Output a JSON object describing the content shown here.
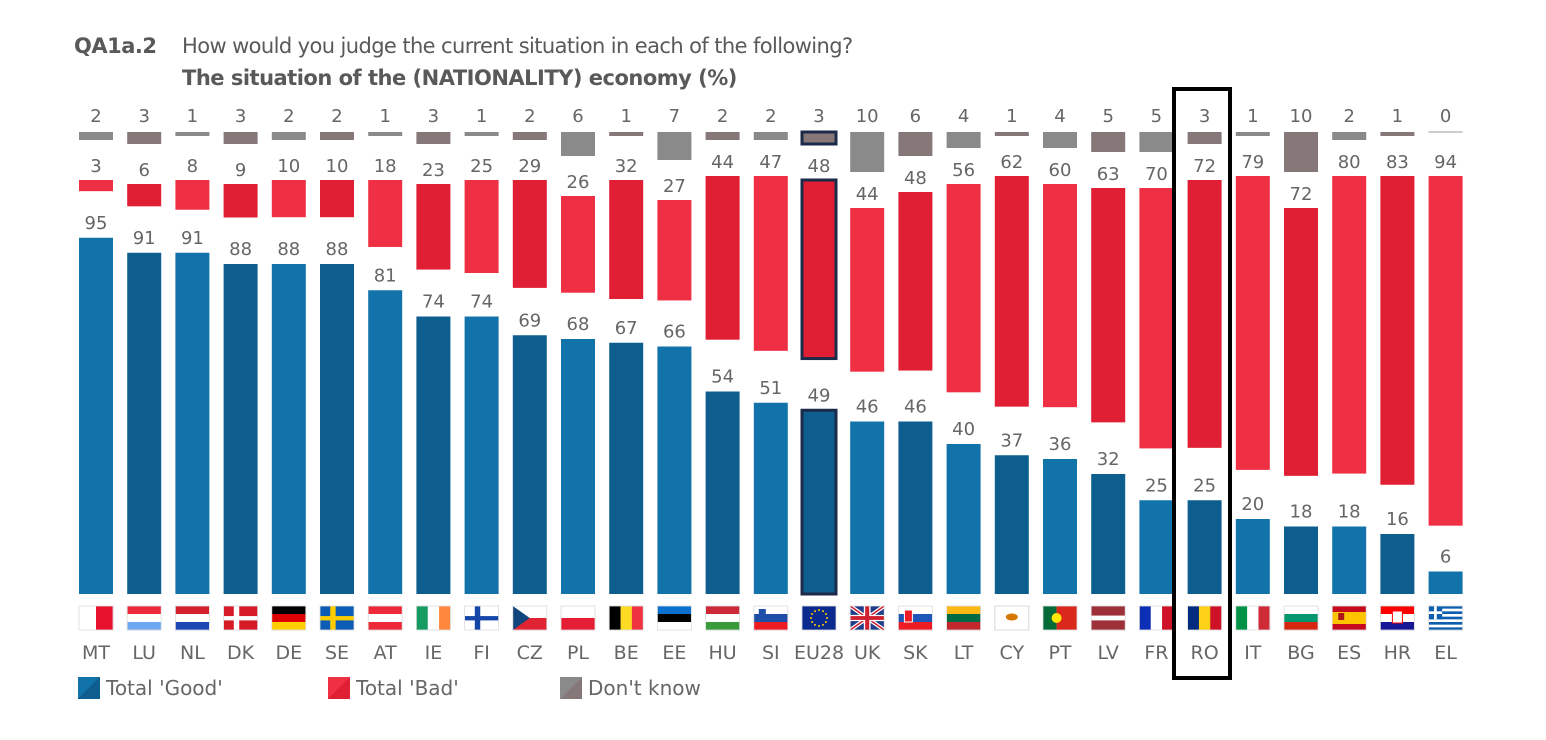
{
  "header": {
    "question_code": "QA1a.2",
    "question": "How would you judge the current situation in each of the following?",
    "subtitle": "The situation of the (NATIONALITY) economy (%)"
  },
  "legend": {
    "good": "Total 'Good'",
    "bad": "Total 'Bad'",
    "dk": "Don't know"
  },
  "colors": {
    "good_light": "#1273ab",
    "good_dark": "#0d5e8e",
    "bad_light": "#ef3044",
    "bad_dark": "#e01e34",
    "dk_light": "#8a8a8a",
    "dk_dark": "#867878",
    "eu_outline": "#1c2a4a",
    "highlight": "#000000"
  },
  "chart_data": {
    "type": "bar",
    "stacking": "separated-columns",
    "title": "The situation of the (NATIONALITY) economy (%)",
    "xlabel": "",
    "ylabel": "",
    "ylim": [
      0,
      100
    ],
    "grid": false,
    "legend_position": "bottom-left",
    "highlighted": "RO",
    "categories": [
      "MT",
      "LU",
      "NL",
      "DK",
      "DE",
      "SE",
      "AT",
      "IE",
      "FI",
      "CZ",
      "PL",
      "BE",
      "EE",
      "HU",
      "SI",
      "EU28",
      "UK",
      "SK",
      "LT",
      "CY",
      "PT",
      "LV",
      "FR",
      "RO",
      "IT",
      "BG",
      "ES",
      "HR",
      "EL"
    ],
    "series": [
      {
        "name": "Total 'Good'",
        "values": [
          95,
          91,
          91,
          88,
          88,
          88,
          81,
          74,
          74,
          69,
          68,
          67,
          66,
          54,
          51,
          49,
          46,
          46,
          40,
          37,
          36,
          32,
          25,
          25,
          20,
          18,
          18,
          16,
          6
        ]
      },
      {
        "name": "Total 'Bad'",
        "values": [
          3,
          6,
          8,
          9,
          10,
          10,
          18,
          23,
          25,
          29,
          26,
          32,
          27,
          44,
          47,
          48,
          44,
          48,
          56,
          62,
          60,
          63,
          70,
          72,
          79,
          72,
          80,
          83,
          94
        ]
      },
      {
        "name": "Don't know",
        "values": [
          2,
          3,
          1,
          3,
          2,
          2,
          1,
          3,
          1,
          2,
          6,
          1,
          7,
          2,
          2,
          3,
          10,
          6,
          4,
          1,
          4,
          5,
          5,
          3,
          1,
          10,
          2,
          1,
          0
        ]
      }
    ]
  }
}
